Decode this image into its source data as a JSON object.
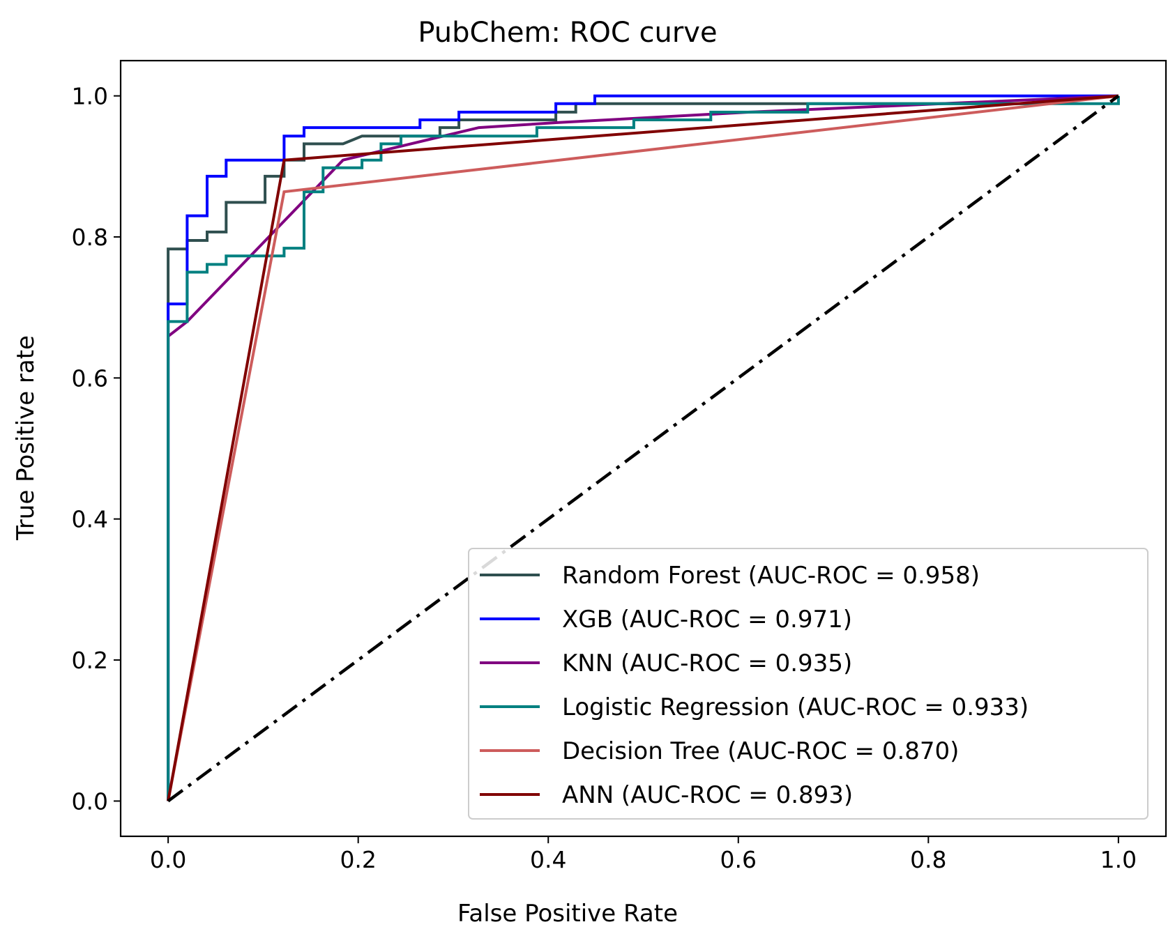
{
  "chart_data": {
    "type": "line",
    "title": "PubChem: ROC curve",
    "xlabel": "False Positive Rate",
    "ylabel": "True Positive rate",
    "xlim": [
      -0.05,
      1.05
    ],
    "ylim": [
      -0.05,
      1.05
    ],
    "xticks": [
      0.0,
      0.2,
      0.4,
      0.6,
      0.8,
      1.0
    ],
    "yticks": [
      0.0,
      0.2,
      0.4,
      0.6,
      0.8,
      1.0
    ],
    "xtick_labels": [
      "0.0",
      "0.2",
      "0.4",
      "0.6",
      "0.8",
      "1.0"
    ],
    "ytick_labels": [
      "0.0",
      "0.2",
      "0.4",
      "0.6",
      "0.8",
      "1.0"
    ],
    "grid": false,
    "legend_position": "lower-right",
    "series": [
      {
        "name": "Random Forest (AUC-ROC = 0.958)",
        "color": "#2F4F4F",
        "points": [
          [
            0,
            0
          ],
          [
            0,
            0.783
          ],
          [
            0.02,
            0.783
          ],
          [
            0.02,
            0.795
          ],
          [
            0.041,
            0.795
          ],
          [
            0.041,
            0.807
          ],
          [
            0.061,
            0.807
          ],
          [
            0.061,
            0.849
          ],
          [
            0.102,
            0.849
          ],
          [
            0.102,
            0.886
          ],
          [
            0.122,
            0.886
          ],
          [
            0.122,
            0.909
          ],
          [
            0.143,
            0.909
          ],
          [
            0.143,
            0.932
          ],
          [
            0.184,
            0.932
          ],
          [
            0.204,
            0.943
          ],
          [
            0.286,
            0.943
          ],
          [
            0.286,
            0.955
          ],
          [
            0.306,
            0.955
          ],
          [
            0.306,
            0.966
          ],
          [
            0.408,
            0.966
          ],
          [
            0.408,
            0.977
          ],
          [
            0.429,
            0.977
          ],
          [
            0.429,
            0.989
          ],
          [
            0.918,
            0.989
          ],
          [
            1.0,
            1.0
          ]
        ]
      },
      {
        "name": "XGB (AUC-ROC = 0.971)",
        "color": "#0000FF",
        "points": [
          [
            0,
            0
          ],
          [
            0,
            0.705
          ],
          [
            0.02,
            0.705
          ],
          [
            0.02,
            0.83
          ],
          [
            0.041,
            0.83
          ],
          [
            0.041,
            0.886
          ],
          [
            0.061,
            0.886
          ],
          [
            0.061,
            0.909
          ],
          [
            0.122,
            0.909
          ],
          [
            0.122,
            0.943
          ],
          [
            0.143,
            0.943
          ],
          [
            0.143,
            0.955
          ],
          [
            0.265,
            0.955
          ],
          [
            0.265,
            0.966
          ],
          [
            0.306,
            0.966
          ],
          [
            0.306,
            0.977
          ],
          [
            0.408,
            0.977
          ],
          [
            0.408,
            0.989
          ],
          [
            0.449,
            0.989
          ],
          [
            0.449,
            1.0
          ],
          [
            1.0,
            1.0
          ]
        ]
      },
      {
        "name": "KNN (AUC-ROC = 0.935)",
        "color": "#800080",
        "points": [
          [
            0,
            0
          ],
          [
            0,
            0.659
          ],
          [
            0.02,
            0.68
          ],
          [
            0.184,
            0.909
          ],
          [
            0.327,
            0.955
          ],
          [
            0.408,
            0.962
          ],
          [
            0.612,
            0.977
          ],
          [
            1.0,
            1.0
          ]
        ]
      },
      {
        "name": "Logistic Regression (AUC-ROC = 0.933)",
        "color": "#008080",
        "points": [
          [
            0,
            0
          ],
          [
            0,
            0.68
          ],
          [
            0.02,
            0.68
          ],
          [
            0.02,
            0.75
          ],
          [
            0.041,
            0.75
          ],
          [
            0.041,
            0.761
          ],
          [
            0.061,
            0.761
          ],
          [
            0.061,
            0.773
          ],
          [
            0.122,
            0.773
          ],
          [
            0.122,
            0.784
          ],
          [
            0.143,
            0.784
          ],
          [
            0.143,
            0.864
          ],
          [
            0.163,
            0.864
          ],
          [
            0.163,
            0.898
          ],
          [
            0.204,
            0.898
          ],
          [
            0.204,
            0.909
          ],
          [
            0.224,
            0.909
          ],
          [
            0.224,
            0.932
          ],
          [
            0.245,
            0.932
          ],
          [
            0.245,
            0.943
          ],
          [
            0.388,
            0.943
          ],
          [
            0.388,
            0.955
          ],
          [
            0.49,
            0.955
          ],
          [
            0.49,
            0.966
          ],
          [
            0.571,
            0.966
          ],
          [
            0.571,
            0.977
          ],
          [
            0.673,
            0.977
          ],
          [
            0.673,
            0.989
          ],
          [
            1.0,
            0.989
          ],
          [
            1.0,
            1.0
          ]
        ]
      },
      {
        "name": "Decision Tree (AUC-ROC = 0.870)",
        "color": "#CD5C5C",
        "points": [
          [
            0,
            0
          ],
          [
            0.122,
            0.864
          ],
          [
            1.0,
            1.0
          ]
        ]
      },
      {
        "name": "ANN (AUC-ROC = 0.893)",
        "color": "#800000",
        "points": [
          [
            0,
            0
          ],
          [
            0.122,
            0.909
          ],
          [
            1.0,
            1.0
          ]
        ]
      }
    ],
    "reference_line": {
      "color": "#000000",
      "style": "dash-dot",
      "points": [
        [
          0,
          0
        ],
        [
          1,
          1
        ]
      ]
    }
  }
}
